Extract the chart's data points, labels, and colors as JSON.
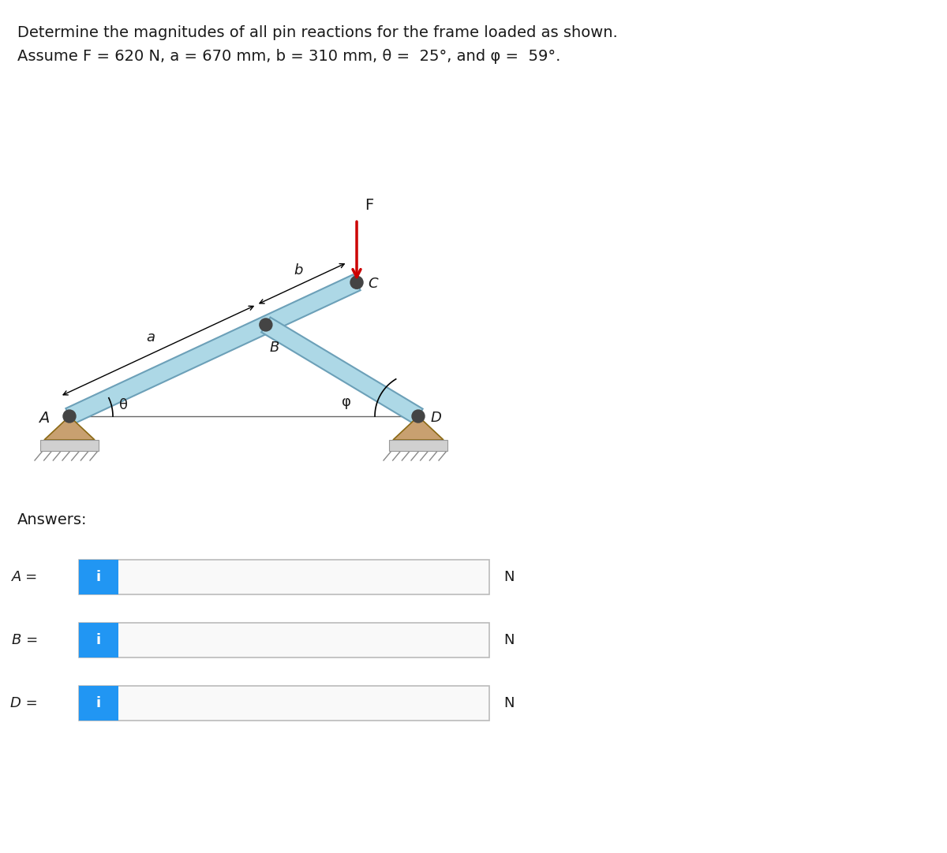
{
  "title_line1": "Determine the magnitudes of all pin reactions for the frame loaded as shown.",
  "title_line2_parts": [
    {
      "text": "Assume F = 620 N, ",
      "style": "normal"
    },
    {
      "text": "a",
      "style": "italic"
    },
    {
      "text": " = 670 mm, ",
      "style": "normal"
    },
    {
      "text": "b",
      "style": "italic"
    },
    {
      "text": " = 310 mm, θ =  25°, and φ =  59°.",
      "style": "normal"
    }
  ],
  "background_color": "#ffffff",
  "text_color": "#1a1a1a",
  "beam_color": "#add8e6",
  "beam_edge_color": "#6ca0b8",
  "support_color": "#c8a070",
  "support_edge_color": "#8b6914",
  "ground_color": "#d0d0d0",
  "force_color": "#cc0000",
  "pin_color": "#444444",
  "answers_label": "Answers:",
  "unit_label": "N",
  "input_box_border": "#bbbbbb",
  "info_btn_color": "#2196f3",
  "info_btn_text": "i",
  "diagram": {
    "theta_deg": 25,
    "phi_deg": 59,
    "force_label": "F",
    "label_a": "a",
    "label_b": "b",
    "label_theta": "θ",
    "label_phi": "φ",
    "label_A": "A",
    "label_B": "B",
    "label_C": "C",
    "label_D": "D"
  },
  "ans_items": [
    {
      "label": "A =",
      "var": "A"
    },
    {
      "label": "B =",
      "var": "B"
    },
    {
      "label": "D =",
      "var": "D"
    }
  ]
}
